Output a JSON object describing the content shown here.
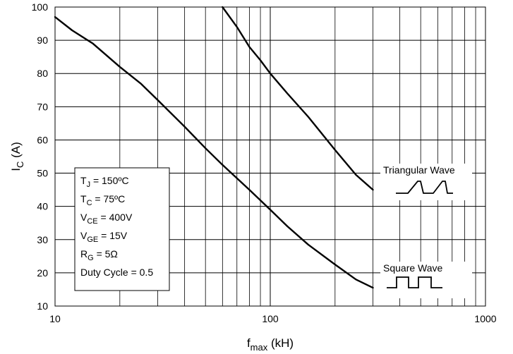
{
  "chart_data": {
    "type": "line",
    "xscale": "log",
    "xlim": [
      10,
      1000
    ],
    "ylim": [
      10,
      100
    ],
    "grid": true,
    "xlabel": {
      "main": "f",
      "sub": "max",
      "unit": " (kH)"
    },
    "ylabel": {
      "main": "I",
      "sub": "C",
      "unit": " (A)"
    },
    "x_ticks": [
      {
        "value": 10,
        "label": "10"
      },
      {
        "value": 100,
        "label": "100"
      },
      {
        "value": 1000,
        "label": "1000"
      }
    ],
    "y_ticks": [
      {
        "value": 10,
        "label": "10"
      },
      {
        "value": 20,
        "label": "20"
      },
      {
        "value": 30,
        "label": "30"
      },
      {
        "value": 40,
        "label": "40"
      },
      {
        "value": 50,
        "label": "50"
      },
      {
        "value": 60,
        "label": "60"
      },
      {
        "value": 70,
        "label": "70"
      },
      {
        "value": 80,
        "label": "80"
      },
      {
        "value": 90,
        "label": "90"
      },
      {
        "value": 100,
        "label": "100"
      }
    ],
    "series": [
      {
        "name": "Triangular Wave",
        "color": "#000000",
        "points": [
          [
            60,
            100
          ],
          [
            70,
            94
          ],
          [
            80,
            88
          ],
          [
            90,
            84
          ],
          [
            100,
            80
          ],
          [
            120,
            74
          ],
          [
            150,
            67
          ],
          [
            200,
            57
          ],
          [
            250,
            49.5
          ],
          [
            300,
            45
          ]
        ]
      },
      {
        "name": "Square Wave",
        "color": "#000000",
        "points": [
          [
            10,
            97
          ],
          [
            12,
            93
          ],
          [
            15,
            89
          ],
          [
            20,
            82
          ],
          [
            25,
            77
          ],
          [
            30,
            72
          ],
          [
            40,
            64
          ],
          [
            50,
            57.5
          ],
          [
            60,
            52.5
          ],
          [
            80,
            45
          ],
          [
            100,
            39
          ],
          [
            120,
            34
          ],
          [
            150,
            28.5
          ],
          [
            200,
            22.5
          ],
          [
            250,
            18
          ],
          [
            300,
            15.5
          ]
        ]
      }
    ],
    "info_box": [
      {
        "main": "T",
        "sub": "J",
        "rest": " = 150ºC"
      },
      {
        "main": "T",
        "sub": "C",
        "rest": " = 75ºC"
      },
      {
        "main": "V",
        "sub": "CE",
        "rest": " = 400V"
      },
      {
        "main": "V",
        "sub": "GE",
        "rest": " = 15V"
      },
      {
        "main": "R",
        "sub": "G",
        "rest": " = 5Ω"
      },
      {
        "main": "Duty Cycle = 0.5",
        "sub": "",
        "rest": ""
      }
    ],
    "callouts": [
      {
        "label": "Triangular Wave",
        "icon": "triangular-wave-icon"
      },
      {
        "label": "Square Wave",
        "icon": "square-wave-icon"
      }
    ]
  }
}
